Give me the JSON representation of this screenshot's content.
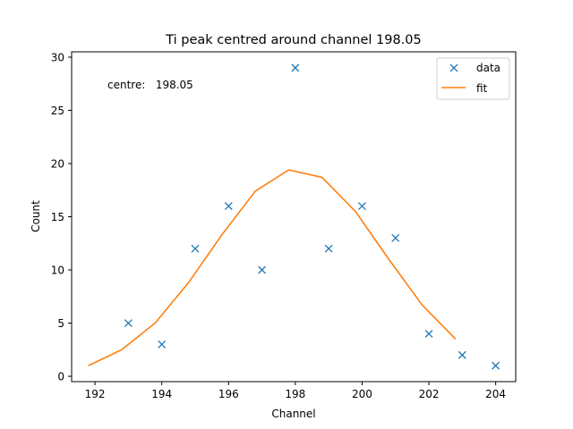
{
  "chart_data": {
    "type": "scatter",
    "title": "Ti peak centred around channel 198.05",
    "xlabel": "Channel",
    "ylabel": "Count",
    "xlim": [
      191.3,
      204.6
    ],
    "ylim": [
      -0.5,
      30.5
    ],
    "xticks": [
      192,
      194,
      196,
      198,
      200,
      202,
      204
    ],
    "yticks": [
      0,
      5,
      10,
      15,
      20,
      25,
      30
    ],
    "grid": false,
    "legend_position": "top-right",
    "annotation": "centre:   198.05",
    "series": [
      {
        "name": "data",
        "kind": "scatter",
        "marker": "x",
        "color": "#1f77b4",
        "x": [
          193,
          194,
          195,
          196,
          197,
          198,
          199,
          200,
          201,
          202,
          203,
          204
        ],
        "y": [
          5,
          3,
          12,
          16,
          10,
          29,
          12,
          16,
          13,
          4,
          2,
          1
        ]
      },
      {
        "name": "fit",
        "kind": "line",
        "color": "#ff7f0e",
        "x": [
          191.8,
          192.8,
          193.8,
          194.8,
          195.8,
          196.8,
          197.8,
          198.8,
          199.8,
          200.8,
          201.8,
          202.8
        ],
        "y": [
          1.0,
          2.5,
          5.0,
          8.8,
          13.3,
          17.4,
          19.4,
          18.7,
          15.5,
          11.0,
          6.7,
          3.5
        ]
      }
    ]
  }
}
